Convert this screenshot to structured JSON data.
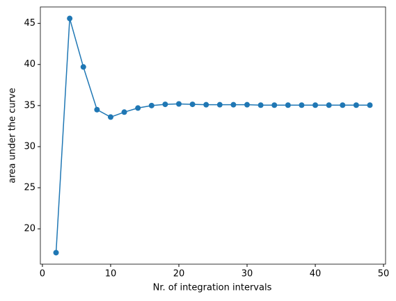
{
  "chart_data": {
    "type": "line",
    "xlabel": "Nr. of integration intervals",
    "ylabel": "area under the curve",
    "x": [
      2,
      4,
      6,
      8,
      10,
      12,
      14,
      16,
      18,
      20,
      22,
      24,
      26,
      28,
      30,
      32,
      34,
      36,
      38,
      40,
      42,
      44,
      46,
      48
    ],
    "series": [
      {
        "color": "#1f77b4",
        "values": [
          17.1,
          45.6,
          39.7,
          34.5,
          33.6,
          34.2,
          34.7,
          35.0,
          35.15,
          35.2,
          35.15,
          35.1,
          35.1,
          35.1,
          35.1,
          35.05,
          35.05,
          35.05,
          35.05,
          35.05,
          35.05,
          35.05,
          35.05,
          35.05
        ]
      }
    ],
    "xlim": [
      -0.3,
      50.3
    ],
    "xticks": [
      0,
      10,
      20,
      30,
      40,
      50
    ],
    "ylim": [
      15.7,
      47.0
    ],
    "yticks": [
      20,
      25,
      30,
      35,
      40,
      45
    ],
    "grid": false
  }
}
